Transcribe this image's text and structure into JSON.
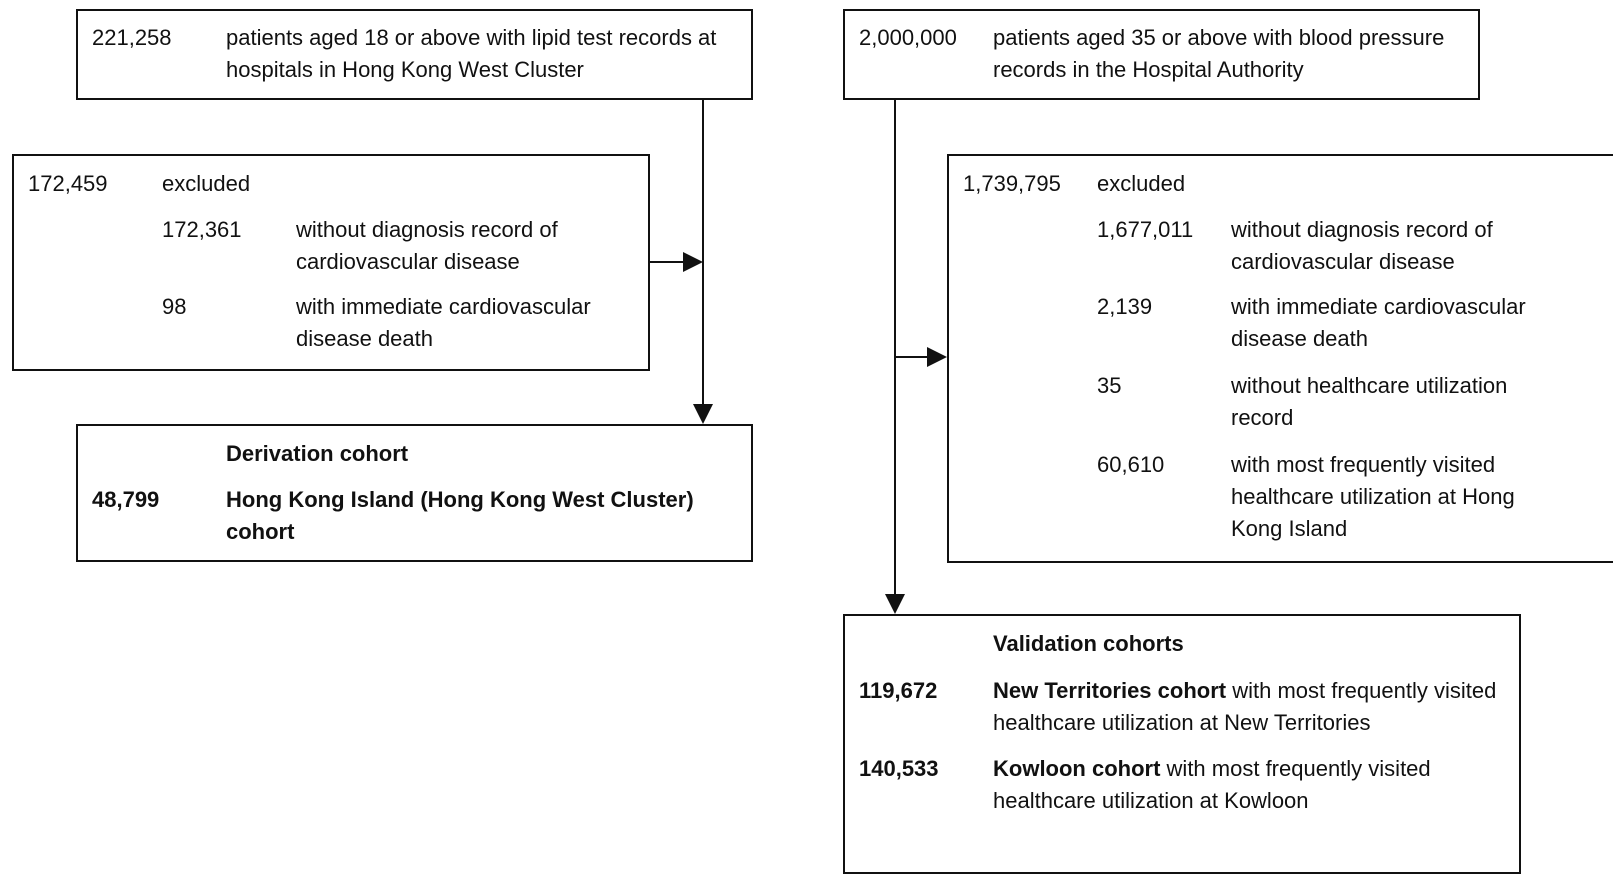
{
  "derivation": {
    "source": {
      "count": "221,258",
      "text": "patients aged 18 or above with lipid test records at hospitals in Hong Kong West Cluster"
    },
    "excluded": {
      "count": "172,459",
      "label": "excluded",
      "reasons": [
        {
          "count": "172,361",
          "text": "without diagnosis record of cardiovascular disease"
        },
        {
          "count": "98",
          "text": "with immediate cardiovascular disease death"
        }
      ]
    },
    "cohort": {
      "heading": "Derivation cohort",
      "count": "48,799",
      "text": "Hong Kong Island (Hong Kong West Cluster) cohort"
    }
  },
  "validation": {
    "source": {
      "count": "2,000,000",
      "text": "patients aged 35 or above with blood pressure records in the Hospital Authority"
    },
    "excluded": {
      "count": "1,739,795",
      "label": "excluded",
      "reasons": [
        {
          "count": "1,677,011",
          "text": "without diagnosis record of cardiovascular disease"
        },
        {
          "count": "2,139",
          "text": "with immediate cardiovascular disease death"
        },
        {
          "count": "35",
          "text": "without healthcare utilization record"
        },
        {
          "count": "60,610",
          "text": "with most frequently visited healthcare utilization at Hong Kong Island"
        }
      ]
    },
    "cohorts": {
      "heading": "Validation cohorts",
      "items": [
        {
          "count": "119,672",
          "name": "New Territories cohort",
          "text": "with most frequently visited healthcare utilization at New Territories"
        },
        {
          "count": "140,533",
          "name": "Kowloon cohort",
          "text": "with most frequently visited healthcare utilization at Kowloon"
        }
      ]
    }
  }
}
